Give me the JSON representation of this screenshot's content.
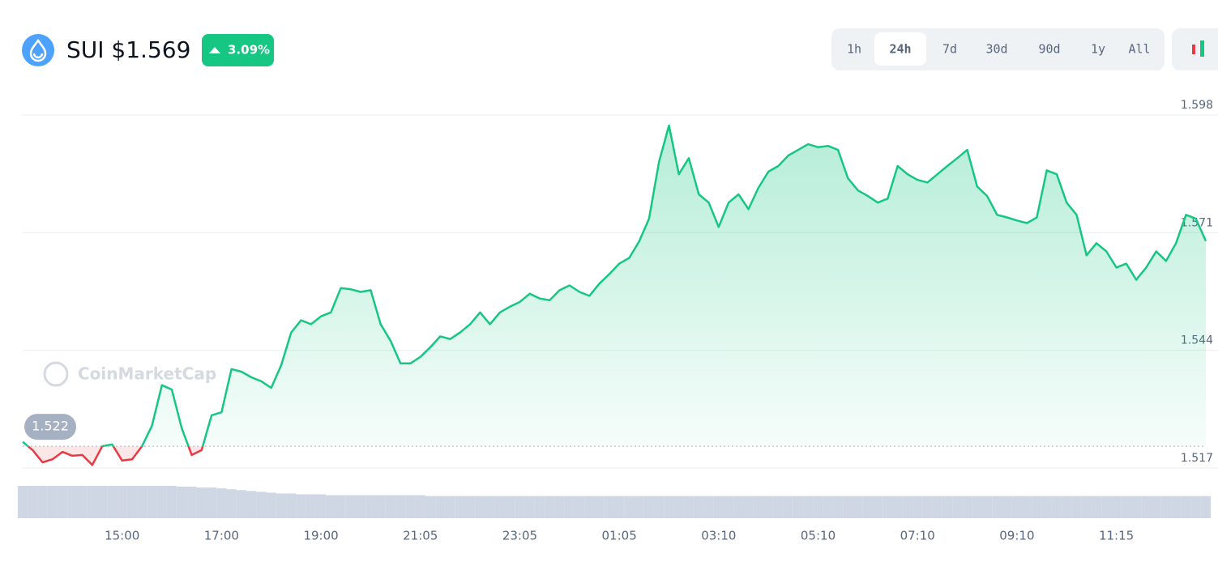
{
  "header": {
    "title": "SUI $1.569",
    "change": "3.09%"
  },
  "timeframes": [
    "1h",
    "24h",
    "7d",
    "30d",
    "90d",
    "1y",
    "All"
  ],
  "active_timeframe": 1,
  "watermark": "CoinMarketCap",
  "chart_data": {
    "type": "line",
    "color": "#16c784",
    "down_color": "#ea3943",
    "baseline": 1.522,
    "ylim": [
      1.517,
      1.598
    ],
    "yticks": [
      1.598,
      1.571,
      1.544,
      1.517
    ],
    "grid": true,
    "categories": [
      null,
      null,
      null,
      null,
      null,
      null,
      null,
      null,
      null,
      null,
      "15:00",
      null,
      null,
      null,
      null,
      null,
      null,
      null,
      null,
      null,
      "17:00",
      null,
      null,
      null,
      null,
      null,
      null,
      null,
      null,
      null,
      "19:00",
      null,
      null,
      null,
      null,
      null,
      null,
      null,
      null,
      null,
      "21:05",
      null,
      null,
      null,
      null,
      null,
      null,
      null,
      null,
      null,
      "23:05",
      null,
      null,
      null,
      null,
      null,
      null,
      null,
      null,
      null,
      "01:05",
      null,
      null,
      null,
      null,
      null,
      null,
      null,
      null,
      null,
      "03:10",
      null,
      null,
      null,
      null,
      null,
      null,
      null,
      null,
      null,
      "05:10",
      null,
      null,
      null,
      null,
      null,
      null,
      null,
      null,
      null,
      "07:10",
      null,
      null,
      null,
      null,
      null,
      null,
      null,
      null,
      null,
      "09:10",
      null,
      null,
      null,
      null,
      null,
      null,
      null,
      null,
      null,
      "11:15",
      null,
      null,
      null,
      null,
      null,
      null,
      null,
      null,
      null
    ],
    "values": [
      1.523,
      1.5211,
      1.5183,
      1.519,
      1.5207,
      1.5198,
      1.52,
      1.5177,
      1.522,
      1.5224,
      1.5187,
      1.519,
      1.522,
      1.5267,
      1.536,
      1.535,
      1.5261,
      1.52,
      1.5211,
      1.5291,
      1.5298,
      1.5397,
      1.5391,
      1.5378,
      1.5369,
      1.5354,
      1.5406,
      1.5481,
      1.5509,
      1.55,
      1.5518,
      1.5527,
      1.5583,
      1.558,
      1.5574,
      1.5578,
      1.55,
      1.5462,
      1.541,
      1.541,
      1.5425,
      1.5447,
      1.5472,
      1.5466,
      1.5481,
      1.55,
      1.5527,
      1.55,
      1.5527,
      1.554,
      1.5551,
      1.557,
      1.5559,
      1.5555,
      1.5578,
      1.5589,
      1.5574,
      1.5565,
      1.5593,
      1.5615,
      1.5639,
      1.5652,
      1.569,
      1.5742,
      1.5872,
      1.5956,
      1.5844,
      1.5881,
      1.5798,
      1.5779,
      1.5723,
      1.5779,
      1.5798,
      1.5764,
      1.5813,
      1.585,
      1.5863,
      1.5887,
      1.59,
      1.5913,
      1.5906,
      1.5909,
      1.59,
      1.5835,
      1.5807,
      1.5794,
      1.5779,
      1.5788,
      1.5863,
      1.5844,
      1.5831,
      1.5825,
      1.5844,
      1.5863,
      1.5881,
      1.59,
      1.5816,
      1.5794,
      1.5751,
      1.5745,
      1.5738,
      1.5732,
      1.5745,
      1.5853,
      1.5844,
      1.5779,
      1.5751,
      1.5658,
      1.5686,
      1.5667,
      1.563,
      1.5639,
      1.5602,
      1.563,
      1.5667,
      1.5645,
      1.5686,
      1.5751,
      1.5742,
      1.5691
    ],
    "volume": [
      38,
      38,
      38,
      38,
      38,
      38,
      38,
      38,
      38,
      38,
      38,
      38,
      38,
      38,
      38,
      38,
      37,
      37,
      36,
      36,
      35,
      34,
      33,
      32,
      31,
      30,
      29,
      29,
      28,
      28,
      28,
      27,
      27,
      27,
      27,
      27,
      27,
      27,
      27,
      27,
      27,
      26,
      26,
      26,
      26,
      26,
      26,
      26,
      26,
      26,
      26,
      26,
      26,
      26,
      26,
      26,
      26,
      26,
      26,
      26,
      26,
      26,
      26,
      26,
      26,
      26,
      26,
      26,
      26,
      26,
      26,
      26,
      26,
      26,
      26,
      26,
      26,
      26,
      26,
      26,
      26,
      26,
      26,
      26,
      26,
      26,
      26,
      26,
      26,
      26,
      26,
      26,
      26,
      26,
      26,
      26,
      26,
      26,
      26,
      26,
      26,
      26,
      26,
      26,
      26,
      26,
      26,
      26,
      26,
      26,
      26,
      26,
      26,
      26,
      26,
      26,
      26,
      26,
      26,
      26
    ]
  }
}
